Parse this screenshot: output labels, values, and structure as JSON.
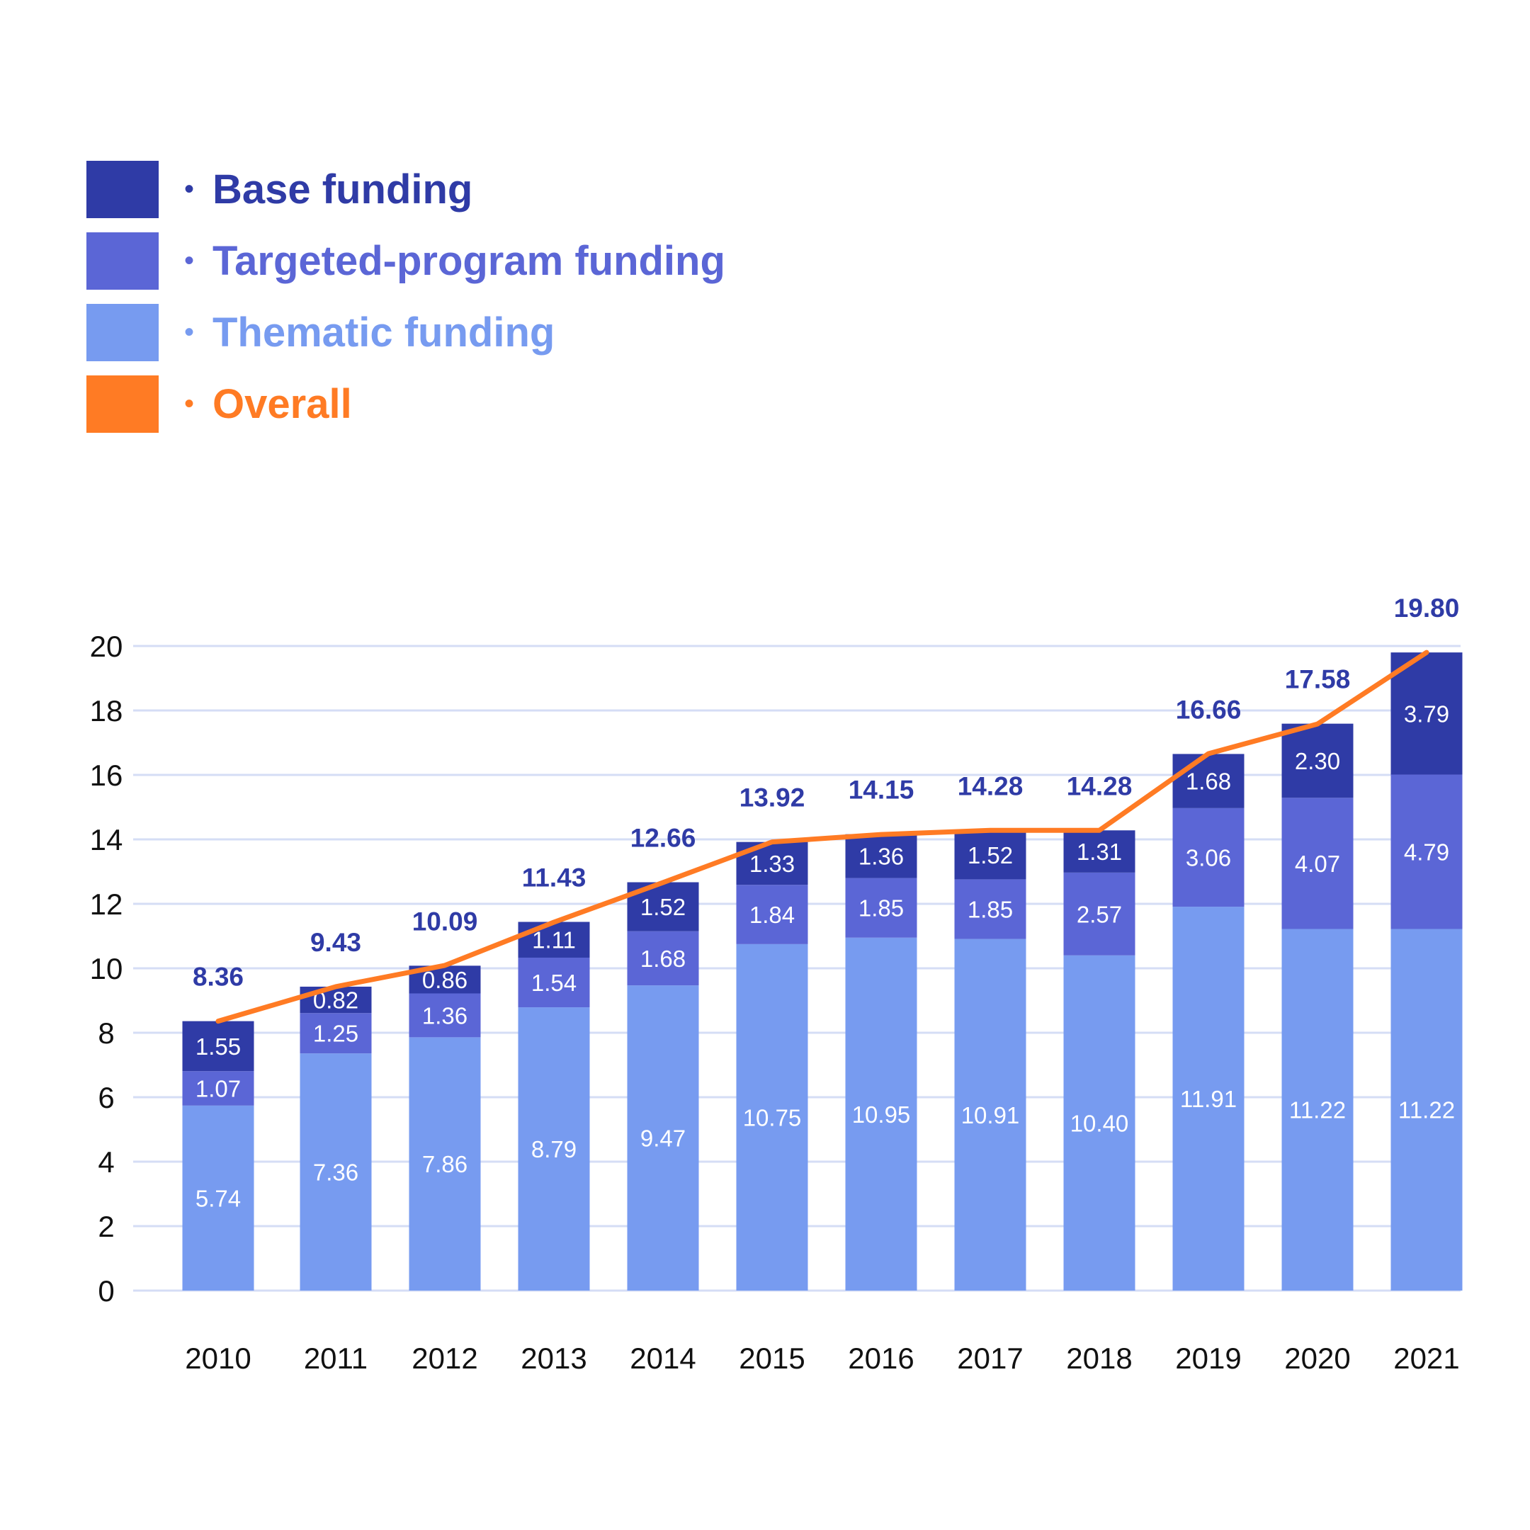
{
  "legend": [
    {
      "label": "Base funding",
      "color": "#2f3ba6"
    },
    {
      "label": "Targeted-program funding",
      "color": "#5b66d6"
    },
    {
      "label": "Thematic funding",
      "color": "#779bf0"
    },
    {
      "label": "Overall",
      "color": "#ff7b24"
    }
  ],
  "chart_data": {
    "type": "bar",
    "stacked": true,
    "categories": [
      "2010",
      "2011",
      "2012",
      "2013",
      "2014",
      "2015",
      "2016",
      "2017",
      "2018",
      "2019",
      "2020",
      "2021"
    ],
    "series": [
      {
        "name": "Thematic funding",
        "color": "#779bf0",
        "values": [
          5.74,
          7.36,
          7.86,
          8.79,
          9.47,
          10.75,
          10.95,
          10.91,
          10.4,
          11.91,
          11.22,
          11.22
        ]
      },
      {
        "name": "Targeted-program funding",
        "color": "#5b66d6",
        "values": [
          1.07,
          1.25,
          1.36,
          1.54,
          1.68,
          1.84,
          1.85,
          1.85,
          2.57,
          3.06,
          4.07,
          4.79
        ]
      },
      {
        "name": "Base funding",
        "color": "#2f3ba6",
        "values": [
          1.55,
          0.82,
          0.86,
          1.11,
          1.52,
          1.33,
          1.36,
          1.52,
          1.31,
          1.68,
          2.3,
          3.79
        ]
      }
    ],
    "overall": {
      "name": "Overall",
      "type": "line",
      "color": "#ff7b24",
      "values": [
        8.36,
        9.43,
        10.09,
        11.43,
        12.66,
        13.92,
        14.15,
        14.28,
        14.28,
        16.66,
        17.58,
        19.8
      ]
    },
    "total_labels": [
      "8.36",
      "9.43",
      "10.09",
      "11.43",
      "12.66",
      "13.92",
      "14.15",
      "14.28",
      "14.28",
      "16.66",
      "17.58",
      "19.80"
    ],
    "segment_labels": [
      [
        "5.74",
        "7.36",
        "7.86",
        "8.79",
        "9.47",
        "10.75",
        "10.95",
        "10.91",
        "10.40",
        "11.91",
        "11.22",
        "11.22"
      ],
      [
        "1.07",
        "1.25",
        "1.36",
        "1.54",
        "1.68",
        "1.84",
        "1.85",
        "1.85",
        "2.57",
        "3.06",
        "4.07",
        "4.79"
      ],
      [
        "1.55",
        "0.82",
        "0.86",
        "1.11",
        "1.52",
        "1.33",
        "1.36",
        "1.52",
        "1.31",
        "1.68",
        "2.30",
        "3.79"
      ]
    ],
    "y_ticks": [
      "0",
      "2",
      "4",
      "6",
      "8",
      "10",
      "12",
      "14",
      "16",
      "18",
      "20"
    ],
    "ylim": [
      0,
      20
    ],
    "grid": true,
    "grid_color": "#d5ddf5",
    "legend_position": "top-left"
  }
}
